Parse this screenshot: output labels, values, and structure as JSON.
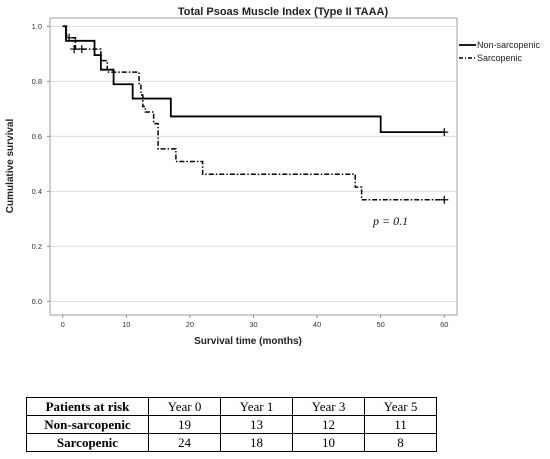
{
  "chart_data": {
    "type": "line",
    "title": "Total Psoas Muscle Index (Type II TAAA)",
    "xlabel": "Survival time (months)",
    "ylabel": "Cumulative survival",
    "xlim": [
      -2,
      62
    ],
    "ylim": [
      -0.05,
      1.03
    ],
    "xticks": [
      "0",
      "10",
      "20",
      "30",
      "40",
      "50",
      "60"
    ],
    "yticks": [
      "0.0",
      "0.2",
      "0.4",
      "0.6",
      "0.8",
      "1.0"
    ],
    "grid": "horizontal",
    "legend_position": "top-right",
    "series": [
      {
        "name": "Non-sarcopenic",
        "style": "solid",
        "steps": [
          [
            0,
            1.0
          ],
          [
            0.5,
            0.947
          ],
          [
            5,
            0.895
          ],
          [
            6,
            0.842
          ],
          [
            8,
            0.789
          ],
          [
            11,
            0.737
          ],
          [
            17,
            0.672
          ],
          [
            50,
            0.615
          ],
          [
            60,
            0.615
          ]
        ],
        "censored": [
          [
            60,
            0.615
          ]
        ]
      },
      {
        "name": "Sarcopenic",
        "style": "dash-dot",
        "steps": [
          [
            0,
            1.0
          ],
          [
            0.6,
            0.958
          ],
          [
            2,
            0.917
          ],
          [
            6,
            0.875
          ],
          [
            7,
            0.833
          ],
          [
            12,
            0.792
          ],
          [
            12.3,
            0.75
          ],
          [
            12.6,
            0.708
          ],
          [
            13,
            0.688
          ],
          [
            14.3,
            0.646
          ],
          [
            15,
            0.554
          ],
          [
            17.8,
            0.508
          ],
          [
            22,
            0.462
          ],
          [
            46,
            0.415
          ],
          [
            47,
            0.369
          ],
          [
            60,
            0.369
          ]
        ],
        "censored": [
          [
            1,
            0.958
          ],
          [
            1.8,
            0.917
          ],
          [
            3,
            0.917
          ],
          [
            60,
            0.369
          ]
        ]
      }
    ],
    "annotation": "p = 0.1"
  },
  "risk_table": {
    "header": [
      "Patients at risk",
      "Year 0",
      "Year 1",
      "Year 3",
      "Year 5"
    ],
    "rows": [
      {
        "label": "Non-sarcopenic",
        "values": [
          "19",
          "13",
          "12",
          "11"
        ]
      },
      {
        "label": "Sarcopenic",
        "values": [
          "24",
          "18",
          "10",
          "8"
        ]
      }
    ]
  }
}
